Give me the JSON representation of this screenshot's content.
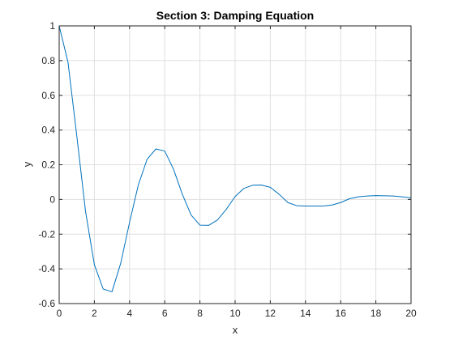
{
  "chart_data": {
    "type": "line",
    "title": "Section 3: Damping Equation",
    "xlabel": "x",
    "ylabel": "y",
    "xlim": [
      0,
      20
    ],
    "ylim": [
      -0.6,
      1
    ],
    "xticks": [
      0,
      2,
      4,
      6,
      8,
      10,
      12,
      14,
      16,
      18,
      20
    ],
    "yticks": [
      -0.6,
      -0.4,
      -0.2,
      0,
      0.2,
      0.4,
      0.6,
      0.8,
      1
    ],
    "xtick_labels": [
      "0",
      "2",
      "4",
      "6",
      "8",
      "10",
      "12",
      "14",
      "16",
      "18",
      "20"
    ],
    "ytick_labels": [
      "-0.6",
      "-0.4",
      "-0.2",
      "0",
      "0.2",
      "0.4",
      "0.6",
      "0.8",
      "1"
    ],
    "grid": true,
    "series": [
      {
        "color": "#0072BD",
        "x": [
          0,
          0.5,
          1,
          1.5,
          2,
          2.5,
          3,
          3.5,
          4,
          4.5,
          5,
          5.5,
          6,
          6.5,
          7,
          7.5,
          8,
          8.5,
          9,
          9.5,
          10,
          10.5,
          11,
          11.5,
          12,
          12.5,
          13,
          13.5,
          14,
          14.5,
          15,
          15.5,
          16,
          16.5,
          17,
          17.5,
          18,
          18.5,
          19,
          19.5,
          20
        ],
        "y": [
          1.0,
          0.791,
          0.367,
          -0.07,
          -0.376,
          -0.516,
          -0.532,
          -0.367,
          -0.132,
          0.084,
          0.232,
          0.291,
          0.279,
          0.174,
          0.03,
          -0.09,
          -0.148,
          -0.149,
          -0.118,
          -0.057,
          0.017,
          0.064,
          0.082,
          0.083,
          0.07,
          0.03,
          -0.018,
          -0.036,
          -0.038,
          -0.038,
          -0.038,
          -0.032,
          -0.018,
          0.004,
          0.015,
          0.02,
          0.022,
          0.021,
          0.02,
          0.015,
          0.009
        ]
      }
    ]
  }
}
